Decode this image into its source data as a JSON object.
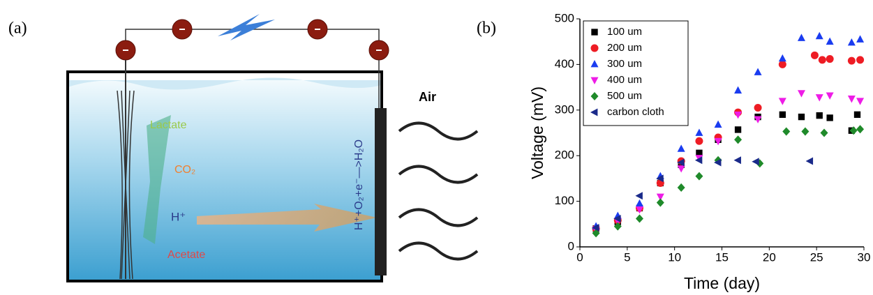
{
  "figure": {
    "label_a": "(a)",
    "label_b": "(b)"
  },
  "diagram": {
    "lactate": "Lactate",
    "co2": "CO₂",
    "proton": "H⁺",
    "acetate": "Acetate",
    "reaction": "H⁺+O₂+e⁻—>H₂O",
    "air": "Air"
  },
  "chart_data": {
    "type": "scatter",
    "xlabel": "Time (day)",
    "ylabel": "Voltage (mV)",
    "xlim": [
      0,
      30
    ],
    "ylim": [
      0,
      500
    ],
    "xticks": [
      0,
      5,
      10,
      15,
      20,
      25,
      30
    ],
    "yticks": [
      0,
      100,
      200,
      300,
      400,
      500
    ],
    "legend": "upper left",
    "series": [
      {
        "name": "100 um",
        "color": "#000000",
        "marker": "square",
        "x": [
          1.7,
          4,
          6.3,
          8.5,
          10.7,
          12.6,
          14.6,
          16.7,
          18.8,
          21.4,
          23.4,
          25.3,
          26.4,
          28.7,
          29.3
        ],
        "values": [
          40,
          55,
          85,
          140,
          180,
          206,
          235,
          257,
          285,
          290,
          285,
          288,
          283,
          255,
          290
        ]
      },
      {
        "name": "200 um",
        "color": "#ee1c24",
        "marker": "circle",
        "x": [
          1.7,
          4,
          6.3,
          8.5,
          10.7,
          12.6,
          14.6,
          16.7,
          18.8,
          21.4,
          24.8,
          25.6,
          26.4,
          28.7,
          29.6
        ],
        "values": [
          40,
          58,
          85,
          140,
          188,
          232,
          240,
          295,
          305,
          400,
          420,
          410,
          412,
          408,
          410
        ]
      },
      {
        "name": "300 um",
        "color": "#1a3cf0",
        "marker": "triangle-up",
        "x": [
          1.7,
          4,
          6.3,
          8.5,
          10.7,
          12.6,
          14.6,
          16.7,
          18.8,
          21.4,
          23.4,
          25.3,
          26.4,
          28.7,
          29.6
        ],
        "values": [
          45,
          68,
          95,
          155,
          215,
          250,
          268,
          343,
          383,
          413,
          458,
          462,
          450,
          448,
          455
        ]
      },
      {
        "name": "400 um",
        "color": "#ee1ce6",
        "marker": "triangle-down",
        "x": [
          1.7,
          4,
          6.3,
          8.5,
          10.7,
          12.6,
          14.6,
          16.7,
          18.8,
          21.4,
          23.4,
          25.3,
          26.4,
          28.7,
          29.6
        ],
        "values": [
          38,
          57,
          82,
          110,
          172,
          195,
          232,
          290,
          280,
          320,
          337,
          328,
          332,
          325,
          320
        ]
      },
      {
        "name": "500 um",
        "color": "#1f8a2a",
        "marker": "diamond",
        "x": [
          1.7,
          4,
          6.3,
          8.5,
          10.7,
          12.6,
          14.6,
          16.7,
          19,
          21.8,
          23.8,
          25.8,
          28.9,
          29.6
        ],
        "values": [
          30,
          45,
          62,
          97,
          130,
          155,
          190,
          235,
          183,
          253,
          253,
          250,
          255,
          258
        ]
      },
      {
        "name": "carbon cloth",
        "color": "#1a2a8a",
        "marker": "triangle-left",
        "x": [
          1.7,
          4,
          6.3,
          8.5,
          10.7,
          12.6,
          14.6,
          16.7,
          18.6,
          24.3
        ],
        "values": [
          42,
          62,
          112,
          150,
          185,
          190,
          185,
          190,
          187,
          188
        ]
      }
    ]
  }
}
